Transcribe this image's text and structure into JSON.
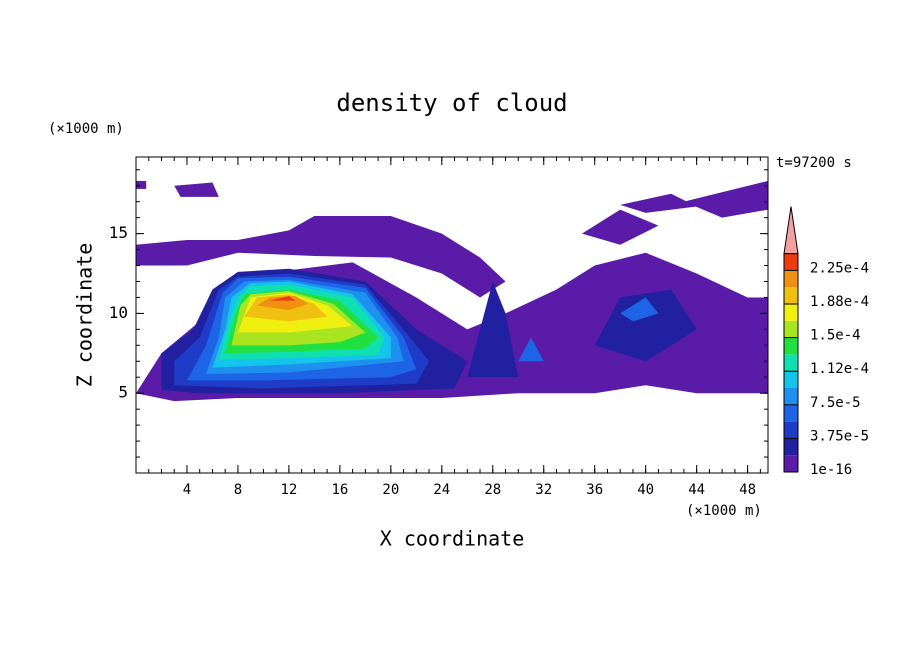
{
  "chart_data": {
    "type": "contour",
    "title": "density of cloud",
    "x_label": "X coordinate",
    "y_label": "Z coordinate",
    "x_unit": "(×1000 m)",
    "y_unit": "(×1000 m)",
    "annotation": "t=97200 s",
    "xlim": [
      0,
      49.6
    ],
    "ylim": [
      0,
      19.8
    ],
    "xticks": [
      4,
      8,
      12,
      16,
      20,
      24,
      28,
      32,
      36,
      40,
      44,
      48
    ],
    "yticks": [
      5,
      10,
      15
    ],
    "xminor": 1,
    "yminor": 1,
    "colorbar": {
      "levels": [
        1e-16,
        1.875e-05,
        3.75e-05,
        5.625e-05,
        7.5e-05,
        9.375e-05,
        0.0001125,
        0.00013125,
        0.00015,
        0.00016875,
        0.0001875,
        0.00020625,
        0.000225,
        0.00024375
      ],
      "colors": [
        "#5a1ca8",
        "#2020a0",
        "#1e3cc8",
        "#1e64e6",
        "#1e90f0",
        "#14c4ea",
        "#10e0b0",
        "#20e040",
        "#a8e420",
        "#f0f010",
        "#f0c010",
        "#f09010",
        "#ec3c10"
      ],
      "over_color": "#f4a0a0",
      "ticks": [
        {
          "value": 1e-16,
          "label": "1e-16"
        },
        {
          "value": 3.75e-05,
          "label": "3.75e-5"
        },
        {
          "value": 7.5e-05,
          "label": "7.5e-5"
        },
        {
          "value": 0.0001125,
          "label": "1.12e-4"
        },
        {
          "value": 0.00015,
          "label": "1.5e-4"
        },
        {
          "value": 0.0001875,
          "label": "1.88e-4"
        },
        {
          "value": 0.000225,
          "label": "2.25e-4"
        }
      ]
    },
    "regions": [
      {
        "value": 1e-05,
        "x": [
          0,
          2,
          5,
          10,
          17,
          22,
          26,
          29,
          33,
          36,
          40,
          44,
          48,
          49.6,
          49.6,
          44,
          40,
          36,
          30,
          24,
          16,
          8,
          3,
          0
        ],
        "z": [
          5,
          7.5,
          9.5,
          12.5,
          13.2,
          11,
          9,
          10,
          11.5,
          13,
          13.8,
          12.5,
          11,
          11,
          5,
          5,
          5.5,
          5,
          5,
          4.7,
          4.7,
          4.7,
          4.5,
          5
        ]
      },
      {
        "value": 1e-05,
        "x": [
          0,
          0,
          4,
          8,
          12,
          14,
          20,
          24,
          27,
          29,
          27,
          24,
          20,
          14,
          8,
          4,
          0
        ],
        "z": [
          13,
          14.3,
          14.6,
          14.6,
          15.2,
          16.1,
          16.1,
          15,
          13.5,
          12,
          11,
          12.5,
          13.5,
          13.6,
          13.8,
          13,
          13
        ]
      },
      {
        "value": 1e-05,
        "x": [
          35,
          38,
          41,
          38
        ],
        "z": [
          15,
          16.5,
          15.5,
          14.3
        ]
      },
      {
        "value": 1e-05,
        "x": [
          43,
          49.6,
          49.6,
          46
        ],
        "z": [
          17,
          18.3,
          16.5,
          16
        ]
      },
      {
        "value": 1e-05,
        "x": [
          38,
          42,
          44,
          40
        ],
        "z": [
          16.8,
          17.5,
          16.7,
          16.3
        ]
      },
      {
        "value": 1e-05,
        "x": [
          3,
          6,
          6.5,
          3.5
        ],
        "z": [
          18,
          18.2,
          17.3,
          17.3
        ]
      },
      {
        "value": 1e-05,
        "x": [
          0,
          0.8,
          0.8,
          0
        ],
        "z": [
          18.3,
          18.3,
          17.8,
          17.8
        ]
      },
      {
        "value": 3e-05,
        "x": [
          26,
          27,
          28,
          29,
          30
        ],
        "z": [
          6,
          9,
          12,
          10,
          6
        ]
      },
      {
        "value": 3e-05,
        "x": [
          36,
          38,
          42,
          44,
          40
        ],
        "z": [
          8,
          11,
          11.5,
          9,
          7
        ]
      },
      {
        "value": 6e-05,
        "x": [
          30,
          31,
          32
        ],
        "z": [
          7,
          8.5,
          7
        ]
      },
      {
        "value": 6e-05,
        "x": [
          38,
          40,
          41,
          39
        ],
        "z": [
          10,
          11,
          10,
          9.5
        ]
      },
      {
        "value": 3e-05,
        "x": [
          2,
          2,
          4.5,
          6,
          8,
          12,
          18,
          22,
          24,
          26,
          25,
          16,
          5
        ],
        "z": [
          5.2,
          7.5,
          9,
          11.5,
          12.6,
          12.8,
          12,
          9,
          8,
          7,
          5.3,
          5,
          5
        ]
      },
      {
        "value": 5e-05,
        "x": [
          3,
          3,
          5,
          6.5,
          8,
          12,
          18,
          21.5,
          23,
          22,
          10
        ],
        "z": [
          5.5,
          7,
          8.5,
          11.5,
          12.3,
          12.5,
          11.8,
          8.5,
          7,
          5.6,
          5.3
        ]
      },
      {
        "value": 7e-05,
        "x": [
          4,
          5.5,
          6.8,
          8,
          12,
          18,
          21,
          22,
          20,
          10
        ],
        "z": [
          5.8,
          8,
          11.3,
          12.2,
          12.3,
          11.6,
          8.5,
          6.5,
          6,
          5.8
        ]
      },
      {
        "value": 9e-05,
        "x": [
          5.5,
          6.5,
          7,
          8.5,
          12,
          18,
          20.5,
          21,
          12
        ],
        "z": [
          6.2,
          8.5,
          11,
          12,
          12.1,
          11.3,
          8.5,
          7,
          6.3
        ]
      },
      {
        "value": 0.000105,
        "x": [
          6,
          7,
          7.5,
          9,
          12,
          17,
          20,
          20,
          12
        ],
        "z": [
          6.6,
          9,
          11,
          11.9,
          12,
          11.2,
          8.5,
          7.2,
          6.8
        ]
      },
      {
        "value": 0.000125,
        "x": [
          6.5,
          7.3,
          8,
          9,
          12,
          17,
          19.5,
          19,
          12
        ],
        "z": [
          7.1,
          9.5,
          11,
          11.7,
          11.8,
          11,
          8.5,
          7.4,
          7.2
        ]
      },
      {
        "value": 0.00014,
        "x": [
          7,
          7.8,
          8.5,
          12,
          16,
          19,
          18,
          12
        ],
        "z": [
          7.5,
          10,
          11.2,
          11.5,
          10.8,
          8.5,
          7.8,
          7.6
        ]
      },
      {
        "value": 0.00016,
        "x": [
          7.5,
          8.2,
          9,
          12,
          15.5,
          18,
          16,
          12
        ],
        "z": [
          8,
          10.5,
          11.2,
          11.4,
          10.6,
          8.8,
          8.2,
          8
        ]
      },
      {
        "value": 0.00018,
        "x": [
          8,
          9,
          12,
          15,
          17,
          12
        ],
        "z": [
          8.8,
          11,
          11.3,
          10.5,
          9.2,
          8.8
        ]
      },
      {
        "value": 0.0002,
        "x": [
          8.5,
          9.5,
          12,
          14,
          15,
          12
        ],
        "z": [
          9.8,
          11,
          11.2,
          10.6,
          9.8,
          9.5
        ]
      },
      {
        "value": 0.00022,
        "x": [
          9.5,
          10.5,
          12.5,
          13.5,
          12
        ],
        "z": [
          10.5,
          11,
          11.1,
          10.6,
          10.2
        ]
      },
      {
        "value": 0.00023,
        "x": [
          10.5,
          12,
          12.5
        ],
        "z": [
          10.8,
          11.1,
          10.8
        ]
      }
    ]
  }
}
